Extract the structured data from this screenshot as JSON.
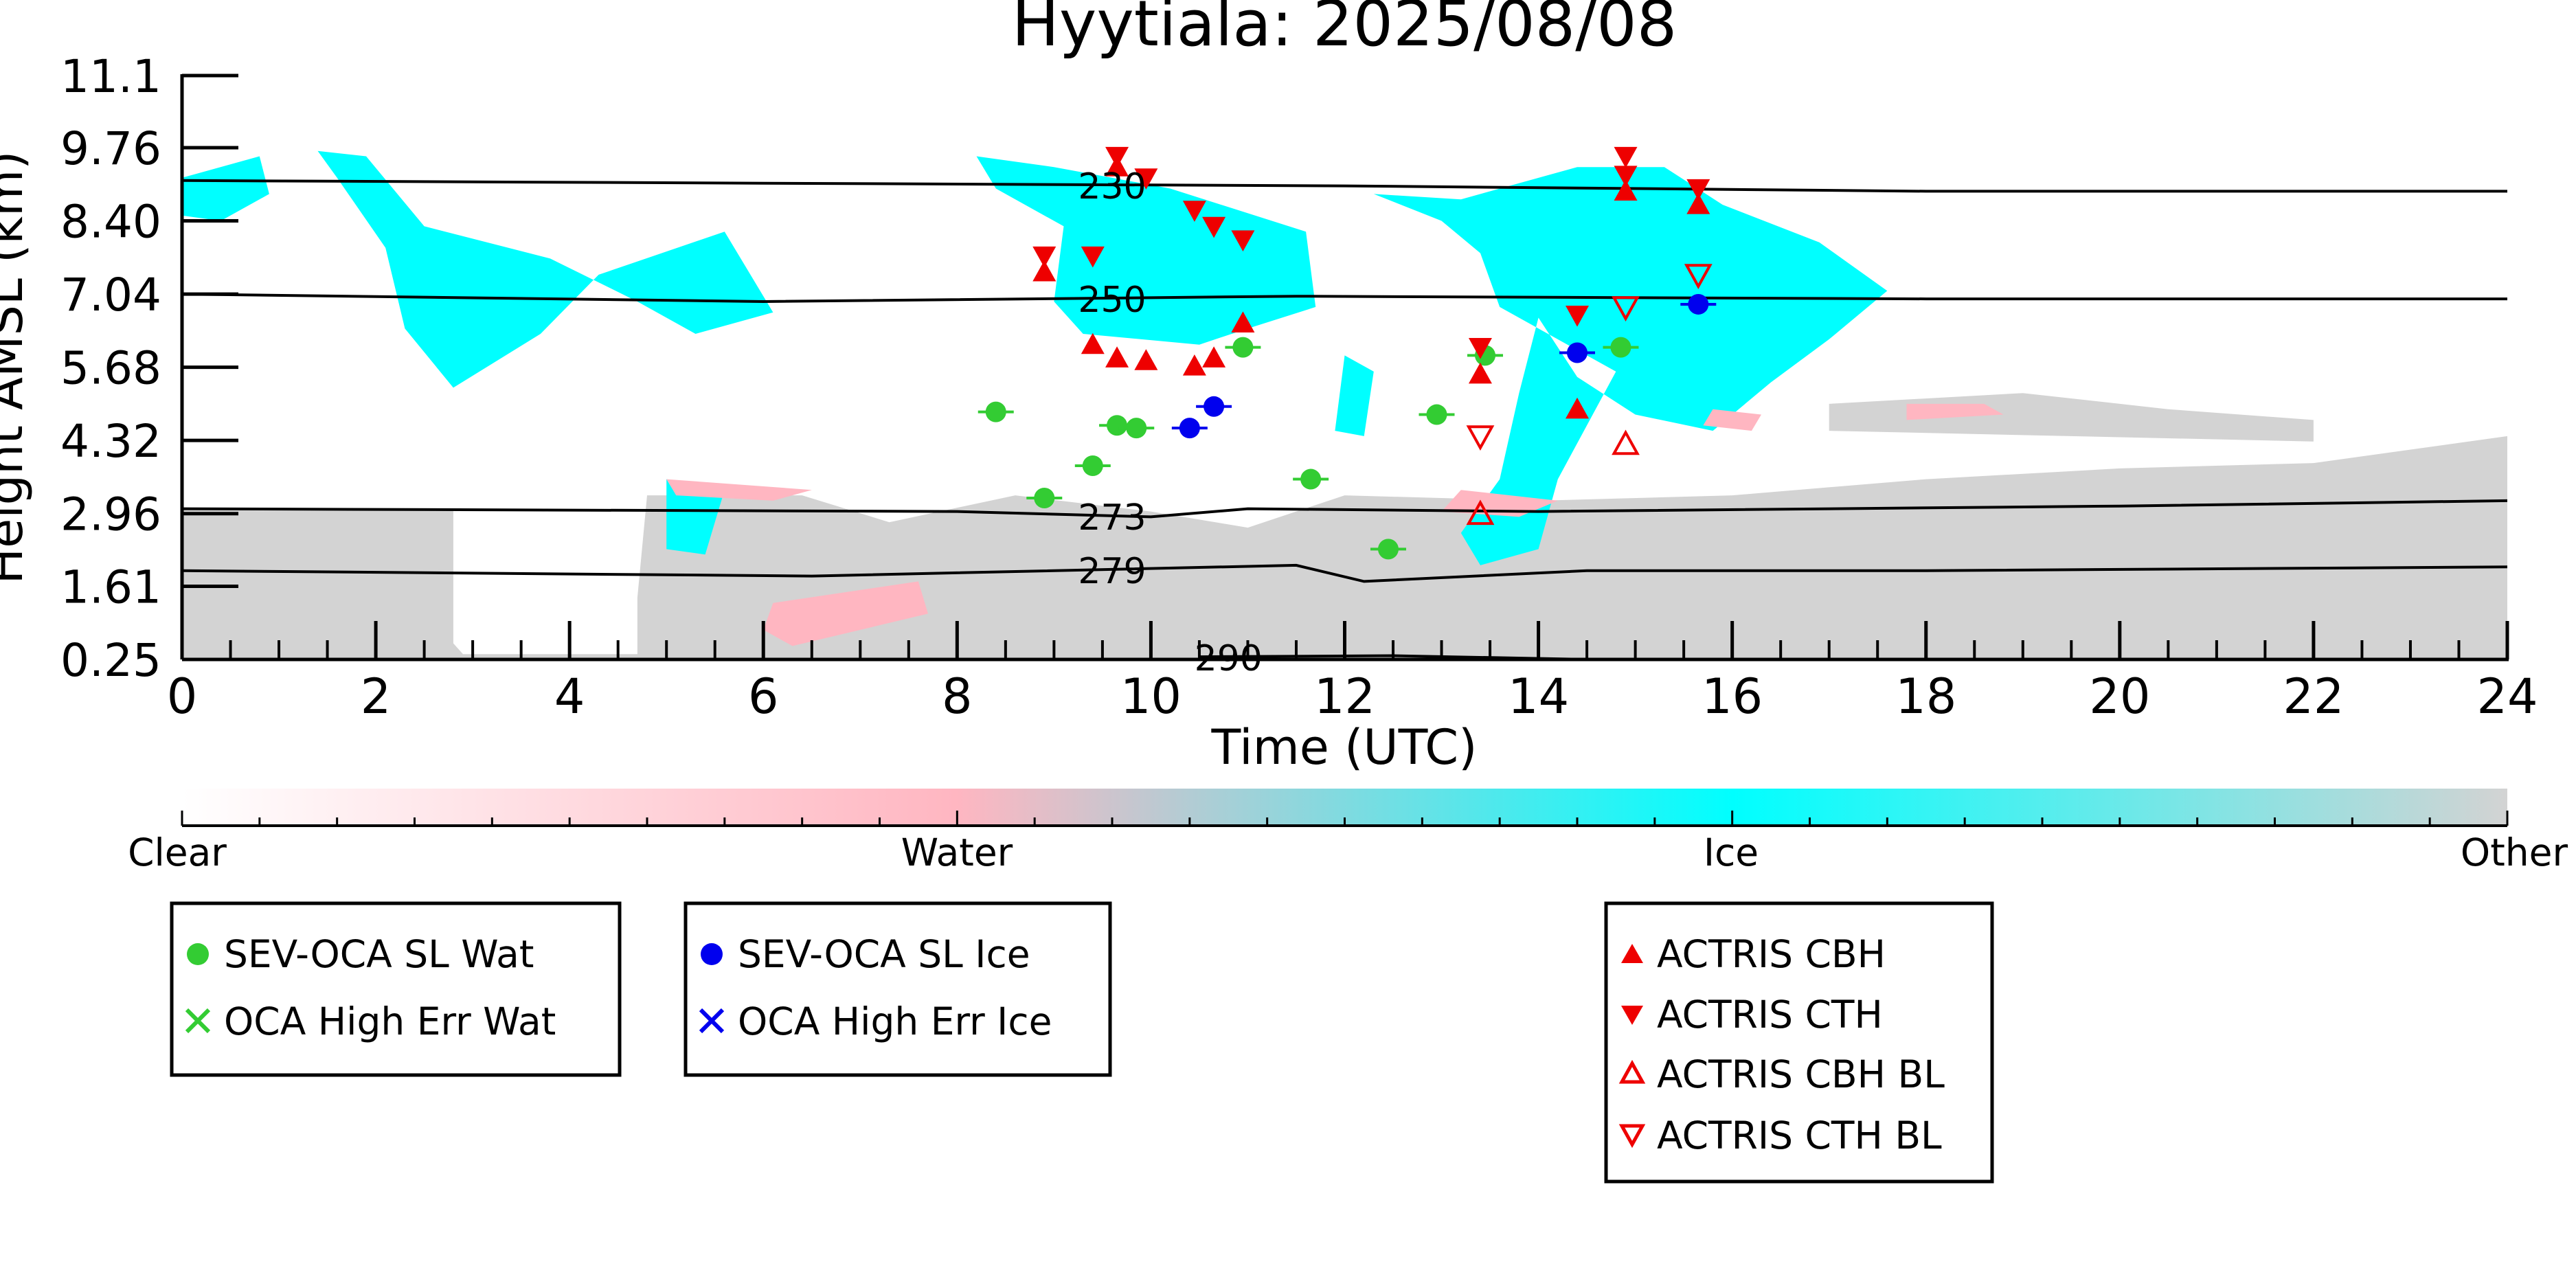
{
  "chart_data": {
    "type": "scatter",
    "title": "Hyytiala: 2025/08/08",
    "xlabel": "Time (UTC)",
    "ylabel": "Height AMSL (km)",
    "xlim": [
      0,
      24
    ],
    "ylim": [
      0.25,
      11.1
    ],
    "x_ticks": [
      0,
      2,
      4,
      6,
      8,
      10,
      12,
      14,
      16,
      18,
      20,
      22,
      24
    ],
    "y_ticks": [
      0.25,
      1.61,
      2.96,
      4.32,
      5.68,
      7.04,
      8.4,
      9.76,
      11.1
    ],
    "y_tick_labels": [
      "0.25",
      "1.61",
      "2.96",
      "4.32",
      "5.68",
      "7.04",
      "8.40",
      "9.76",
      "11.1"
    ],
    "grid": false,
    "background_field": {
      "description_colors": {
        "clear": "#ffffff",
        "water": "#ffb6c1",
        "ice": "#00ffff",
        "other": "#d3d3d3"
      },
      "ice_regions": [
        [
          [
            0.0,
            9.2
          ],
          [
            0.8,
            9.6
          ],
          [
            0.9,
            8.9
          ],
          [
            0.4,
            8.4
          ],
          [
            0.0,
            8.5
          ]
        ],
        [
          [
            1.4,
            9.7
          ],
          [
            1.9,
            9.6
          ],
          [
            2.5,
            8.3
          ],
          [
            3.8,
            7.7
          ],
          [
            4.7,
            6.9
          ],
          [
            5.3,
            6.3
          ],
          [
            6.1,
            6.7
          ],
          [
            5.6,
            8.2
          ],
          [
            4.3,
            7.4
          ],
          [
            3.7,
            6.3
          ],
          [
            2.8,
            5.3
          ],
          [
            2.3,
            6.4
          ],
          [
            2.1,
            7.9
          ],
          [
            1.6,
            9.2
          ]
        ],
        [
          [
            8.2,
            9.6
          ],
          [
            9.0,
            9.4
          ],
          [
            10.2,
            9.0
          ],
          [
            10.9,
            8.6
          ],
          [
            11.6,
            8.2
          ],
          [
            11.7,
            6.8
          ],
          [
            11.0,
            6.4
          ],
          [
            10.5,
            6.1
          ],
          [
            9.3,
            6.3
          ],
          [
            9.0,
            6.9
          ],
          [
            9.1,
            8.3
          ],
          [
            8.4,
            9.0
          ]
        ],
        [
          [
            12.3,
            8.9
          ],
          [
            13.2,
            8.8
          ],
          [
            14.4,
            9.4
          ],
          [
            15.3,
            9.4
          ],
          [
            15.9,
            8.7
          ],
          [
            16.9,
            8.0
          ],
          [
            17.6,
            7.1
          ],
          [
            17.0,
            6.2
          ],
          [
            16.4,
            5.4
          ],
          [
            15.8,
            4.5
          ],
          [
            15.0,
            4.8
          ],
          [
            14.4,
            5.5
          ],
          [
            14.0,
            6.6
          ],
          [
            13.8,
            5.2
          ],
          [
            13.6,
            3.6
          ],
          [
            13.2,
            2.6
          ],
          [
            13.4,
            2.0
          ],
          [
            14.0,
            2.3
          ],
          [
            14.2,
            3.6
          ],
          [
            14.8,
            5.6
          ],
          [
            13.6,
            6.8
          ],
          [
            13.4,
            7.8
          ],
          [
            13.0,
            8.4
          ]
        ],
        [
          [
            5.0,
            3.6
          ],
          [
            5.6,
            3.4
          ],
          [
            5.4,
            2.2
          ],
          [
            5.0,
            2.3
          ]
        ],
        [
          [
            12.0,
            5.9
          ],
          [
            12.3,
            5.6
          ],
          [
            12.2,
            4.4
          ],
          [
            11.9,
            4.5
          ]
        ]
      ],
      "water_regions": [
        [
          [
            6.1,
            1.3
          ],
          [
            7.6,
            1.7
          ],
          [
            7.7,
            1.1
          ],
          [
            6.3,
            0.5
          ],
          [
            6.0,
            0.8
          ]
        ],
        [
          [
            13.2,
            3.4
          ],
          [
            14.2,
            3.2
          ],
          [
            13.8,
            2.9
          ],
          [
            13.0,
            3.0
          ]
        ],
        [
          [
            5.0,
            3.6
          ],
          [
            6.5,
            3.4
          ],
          [
            6.1,
            3.2
          ],
          [
            5.1,
            3.3
          ]
        ],
        [
          [
            15.8,
            4.9
          ],
          [
            16.3,
            4.8
          ],
          [
            16.2,
            4.5
          ],
          [
            15.7,
            4.6
          ]
        ],
        [
          [
            17.8,
            5.0
          ],
          [
            18.6,
            5.0
          ],
          [
            18.8,
            4.8
          ],
          [
            17.8,
            4.7
          ]
        ]
      ],
      "other_regions": [
        [
          [
            0.0,
            3.05
          ],
          [
            2.8,
            3.05
          ],
          [
            2.8,
            0.55
          ],
          [
            2.9,
            0.35
          ],
          [
            4.7,
            0.35
          ],
          [
            4.7,
            1.4
          ],
          [
            4.8,
            3.3
          ],
          [
            6.4,
            3.3
          ],
          [
            7.3,
            2.8
          ],
          [
            8.6,
            3.3
          ],
          [
            10.0,
            3.0
          ],
          [
            11.0,
            2.7
          ],
          [
            12.0,
            3.3
          ],
          [
            14.0,
            3.2
          ],
          [
            16.0,
            3.3
          ],
          [
            18.0,
            3.6
          ],
          [
            20.0,
            3.8
          ],
          [
            22.0,
            3.9
          ],
          [
            24.0,
            4.4
          ],
          [
            24.0,
            0.25
          ],
          [
            0.0,
            0.25
          ]
        ],
        [
          [
            17.0,
            5.0
          ],
          [
            19.0,
            5.2
          ],
          [
            20.5,
            4.9
          ],
          [
            22.0,
            4.7
          ],
          [
            22.0,
            4.3
          ],
          [
            17.0,
            4.5
          ]
        ]
      ]
    },
    "isotherms": [
      {
        "label": "230",
        "label_at": 9.6,
        "points": [
          [
            0,
            9.15
          ],
          [
            6,
            9.1
          ],
          [
            12,
            9.05
          ],
          [
            18,
            8.95
          ],
          [
            24,
            8.95
          ]
        ]
      },
      {
        "label": "250",
        "label_at": 9.6,
        "points": [
          [
            0,
            7.04
          ],
          [
            6,
            6.9
          ],
          [
            11.5,
            7.0
          ],
          [
            18,
            6.95
          ],
          [
            24,
            6.95
          ]
        ]
      },
      {
        "label": "273",
        "label_at": 9.6,
        "points": [
          [
            0,
            3.05
          ],
          [
            8,
            3.0
          ],
          [
            10,
            2.9
          ],
          [
            11,
            3.05
          ],
          [
            14,
            3.0
          ],
          [
            20,
            3.1
          ],
          [
            24,
            3.2
          ]
        ]
      },
      {
        "label": "279",
        "label_at": 9.6,
        "points": [
          [
            0,
            1.9
          ],
          [
            6.5,
            1.8
          ],
          [
            11.5,
            2.0
          ],
          [
            12.2,
            1.7
          ],
          [
            14.5,
            1.9
          ],
          [
            18,
            1.9
          ],
          [
            24,
            1.97
          ]
        ]
      },
      {
        "label": "290",
        "label_at": 10.8,
        "points": [
          [
            10.5,
            0.3
          ],
          [
            12.5,
            0.32
          ],
          [
            14.5,
            0.25
          ]
        ]
      }
    ],
    "series": [
      {
        "name": "SEV-OCA SL Wat",
        "marker": "circle",
        "color": "#33cc33",
        "points": [
          [
            8.4,
            4.85
          ],
          [
            8.9,
            3.25
          ],
          [
            9.4,
            3.85
          ],
          [
            9.65,
            4.6
          ],
          [
            9.85,
            4.55
          ],
          [
            10.95,
            6.05
          ],
          [
            11.65,
            3.6
          ],
          [
            12.45,
            2.3
          ],
          [
            12.95,
            4.8
          ],
          [
            13.45,
            5.9
          ],
          [
            14.85,
            6.05
          ]
        ]
      },
      {
        "name": "OCA High Err Wat",
        "marker": "x",
        "color": "#33cc33",
        "points": []
      },
      {
        "name": "SEV-OCA SL Ice",
        "marker": "circle",
        "color": "#0000ee",
        "points": [
          [
            10.4,
            4.55
          ],
          [
            10.65,
            4.95
          ],
          [
            14.4,
            5.95
          ],
          [
            15.65,
            6.85
          ]
        ]
      },
      {
        "name": "OCA High Err Ice",
        "marker": "x",
        "color": "#0000ee",
        "points": []
      },
      {
        "name": "ACTRIS CBH",
        "marker": "triangle-up",
        "color": "#ee0000",
        "points": [
          [
            8.9,
            7.45
          ],
          [
            9.4,
            6.1
          ],
          [
            9.65,
            9.4
          ],
          [
            9.65,
            5.85
          ],
          [
            9.95,
            5.8
          ],
          [
            10.45,
            5.7
          ],
          [
            10.65,
            5.85
          ],
          [
            10.95,
            6.5
          ],
          [
            13.4,
            5.55
          ],
          [
            14.4,
            4.9
          ],
          [
            14.9,
            8.95
          ],
          [
            15.65,
            8.7
          ]
        ]
      },
      {
        "name": "ACTRIS CTH",
        "marker": "triangle-down",
        "color": "#ee0000",
        "points": [
          [
            8.9,
            7.75
          ],
          [
            9.4,
            7.75
          ],
          [
            9.65,
            9.6
          ],
          [
            9.95,
            9.2
          ],
          [
            10.45,
            8.6
          ],
          [
            10.65,
            8.3
          ],
          [
            10.95,
            8.05
          ],
          [
            13.4,
            6.05
          ],
          [
            14.4,
            6.65
          ],
          [
            14.9,
            9.6
          ],
          [
            14.9,
            9.25
          ],
          [
            15.65,
            9.0
          ]
        ]
      },
      {
        "name": "ACTRIS CBH BL",
        "marker": "triangle-up-open",
        "color": "#ee0000",
        "points": [
          [
            13.4,
            2.95
          ],
          [
            14.9,
            4.25
          ]
        ]
      },
      {
        "name": "ACTRIS CTH BL",
        "marker": "triangle-down-open",
        "color": "#ee0000",
        "points": [
          [
            13.4,
            4.4
          ],
          [
            14.9,
            6.8
          ],
          [
            15.65,
            7.4
          ]
        ]
      }
    ],
    "colorbar": {
      "labels": [
        "Clear",
        "Water",
        "Ice",
        "Other"
      ],
      "colors": [
        "#ffffff",
        "#ffb6c1",
        "#00ffff",
        "#d3d3d3"
      ]
    },
    "legends": [
      {
        "entries": [
          "SEV-OCA SL Wat",
          "OCA High Err Wat"
        ]
      },
      {
        "entries": [
          "SEV-OCA SL Ice",
          "OCA High Err Ice"
        ]
      },
      {
        "entries": [
          "ACTRIS CBH",
          "ACTRIS CTH",
          "ACTRIS CBH BL",
          "ACTRIS CTH BL"
        ]
      }
    ]
  }
}
